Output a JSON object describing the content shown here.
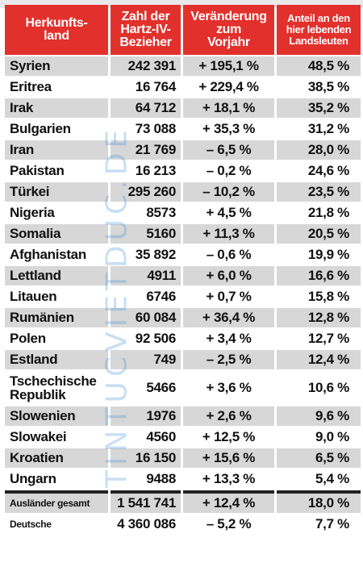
{
  "header": {
    "country": "Herkunfts-\nland",
    "count": "Zahl der\nHartz-IV-\nBezieher",
    "change": "Veränderung\nzum\nVorjahr",
    "share": "Anteil an den\nhier lebenden\nLandsleuten"
  },
  "rows": [
    {
      "country": "Syrien",
      "count": "242 391",
      "change": "+ 195,1 %",
      "share": "48,5 %"
    },
    {
      "country": "Eritrea",
      "count": "16 764",
      "change": "+ 229,4 %",
      "share": "38,5 %"
    },
    {
      "country": "Irak",
      "count": "64 712",
      "change": "+ 18,1 %",
      "share": "35,2 %"
    },
    {
      "country": "Bulgarien",
      "count": "73 088",
      "change": "+ 35,3 %",
      "share": "31,2 %"
    },
    {
      "country": "Iran",
      "count": "21 769",
      "change": "– 6,5 %",
      "share": "28,0 %"
    },
    {
      "country": "Pakistan",
      "count": "16 213",
      "change": "– 0,2 %",
      "share": "24,6 %"
    },
    {
      "country": "Türkei",
      "count": "295 260",
      "change": "– 10,2 %",
      "share": "23,5 %"
    },
    {
      "country": "Nigeria",
      "count": "8573",
      "change": "+ 4,5 %",
      "share": "21,8 %"
    },
    {
      "country": "Somalia",
      "count": "5160",
      "change": "+ 11,3 %",
      "share": "20,5 %"
    },
    {
      "country": "Afghanistan",
      "count": "35 892",
      "change": "– 0,6 %",
      "share": "19,9 %"
    },
    {
      "country": "Lettland",
      "count": "4911",
      "change": "+ 6,0 %",
      "share": "16,6 %"
    },
    {
      "country": "Litauen",
      "count": "6746",
      "change": "+ 0,7 %",
      "share": "15,8 %"
    },
    {
      "country": "Rumänien",
      "count": "60 084",
      "change": "+ 36,4 %",
      "share": "12,8 %"
    },
    {
      "country": "Polen",
      "count": "92 506",
      "change": "+ 3,4 %",
      "share": "12,7 %"
    },
    {
      "country": "Estland",
      "count": "749",
      "change": "– 2,5 %",
      "share": "12,4 %"
    },
    {
      "country": "Tschechische Republik",
      "count": "5466",
      "change": "+ 3,6 %",
      "share": "10,6 %"
    },
    {
      "country": "Slowenien",
      "count": "1976",
      "change": "+ 2,6 %",
      "share": "9,6 %"
    },
    {
      "country": "Slowakei",
      "count": "4560",
      "change": "+ 12,5 %",
      "share": "9,0 %"
    },
    {
      "country": "Kroatien",
      "count": "16 150",
      "change": "+ 15,6 %",
      "share": "6,5 %"
    },
    {
      "country": "Ungarn",
      "count": "9488",
      "change": "+ 13,3 %",
      "share": "5,4 %"
    }
  ],
  "totals": [
    {
      "country": "Ausländer gesamt",
      "count": "1 541 741",
      "change": "+ 12,4 %",
      "share": "18,0 %"
    },
    {
      "country": "Deutsche",
      "count": "4 360 086",
      "change": "– 5,2 %",
      "share": "7,7 %"
    }
  ],
  "watermark": "TINTUCVIETDUC.DE",
  "colors": {
    "header": "#e2302c",
    "row_alt": "#d7d7d7",
    "watermark": "#3a8fd8"
  }
}
